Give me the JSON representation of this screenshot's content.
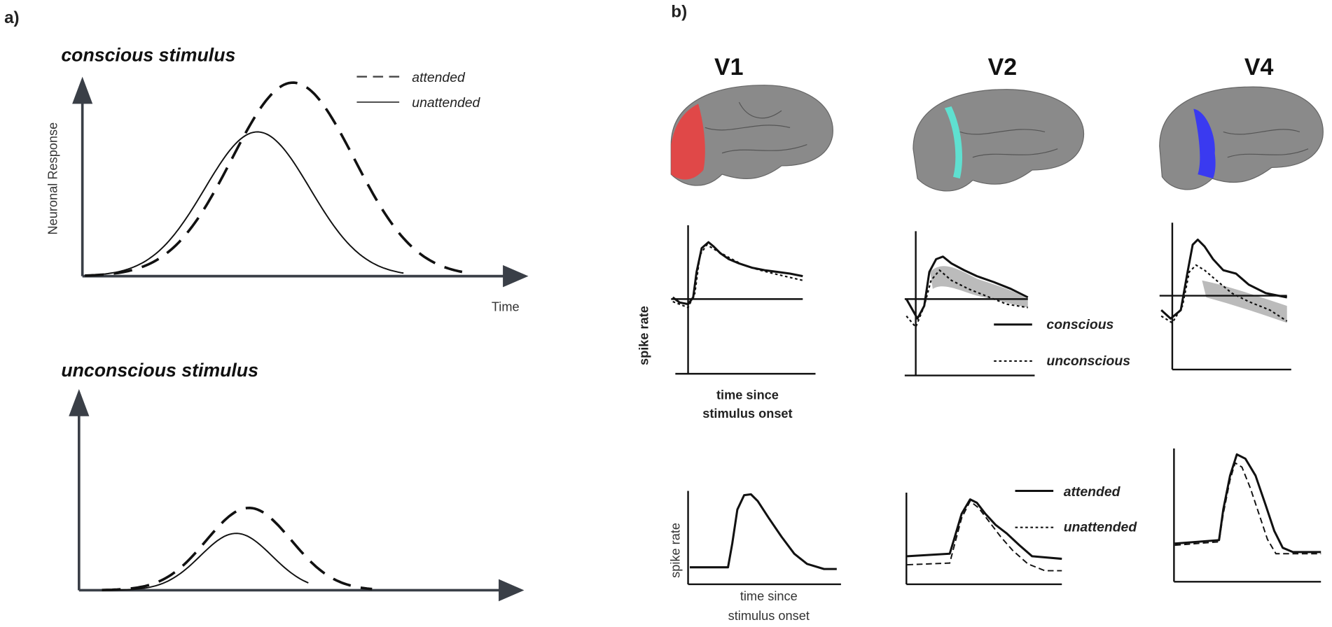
{
  "panel_labels": [
    "a)",
    "b)"
  ],
  "panel_a": {
    "top_title": "conscious stimulus",
    "bottom_title": "unconscious stimulus",
    "legend": [
      "attended",
      "unattended"
    ],
    "y_label": "Neuronal Response",
    "x_label": "Time"
  },
  "panel_b": {
    "areas": [
      "V1",
      "V2",
      "V4"
    ],
    "consciousness": {
      "y_label": "spike rate",
      "x_label": [
        "time since",
        "stimulus onset"
      ],
      "legend": [
        "conscious",
        "unconscious"
      ]
    },
    "attention": {
      "y_label": "spike rate",
      "x_label": [
        "time since",
        "stimulus onset"
      ],
      "legend": [
        "attended",
        "unattended"
      ]
    }
  }
}
